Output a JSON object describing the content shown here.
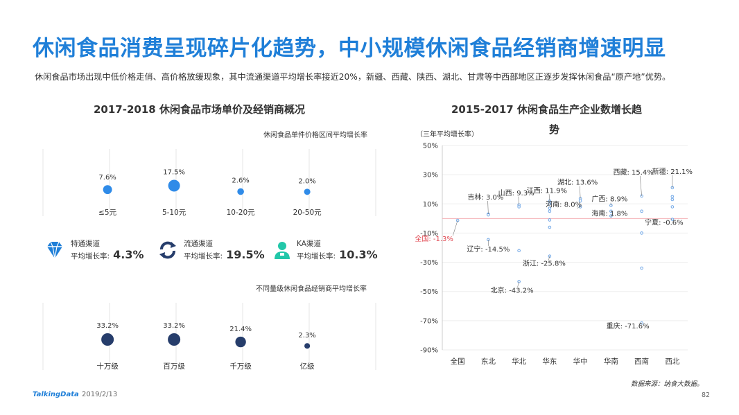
{
  "title": "休闲食品消费呈现碎片化趋势，中小规模休闲食品经销商增速明显",
  "subtitle": "休闲食品市场出现中低价格走俏、高价格放缓现象，其中流通渠道平均增长率接近20%，新疆、西藏、陕西、湖北、甘肃等中西部地区正逐步发挥休闲食品“原产地”优势。",
  "left_panel": {
    "title": "2017-2018  休闲食品市场单价及经销商概况",
    "channels": [
      {
        "name": "特通渠道",
        "rate_label": "平均增长率:",
        "rate": "4.3%",
        "icon": "diamond-icon"
      },
      {
        "name": "流通渠道",
        "rate_label": "平均增长率:",
        "rate": "19.5%",
        "icon": "circular-arrows-icon"
      },
      {
        "name": "KA渠道",
        "rate_label": "平均增长率:",
        "rate": "10.3%",
        "icon": "clerk-icon"
      }
    ]
  },
  "right_panel": {
    "title_line1": "2015-2017  休闲食品生产企业数增长趋",
    "title_line2": "势"
  },
  "colors": {
    "accent_blue": "#1f7fd8",
    "bubble_blue": "#2f8be8",
    "bubble_navy": "#263d6b",
    "negative_red": "#e0454f",
    "scatter_point": "#6fa6e6"
  },
  "chart_data": [
    {
      "type": "scatter",
      "title": "休闲食品单件价格区间平均增长率",
      "categories": [
        "≤5元",
        "5-10元",
        "10-20元",
        "20-50元"
      ],
      "values": [
        7.6,
        17.5,
        2.6,
        2.0
      ],
      "labels": [
        "7.6%",
        "17.5%",
        "2.6%",
        "2.0%"
      ],
      "grid": true
    },
    {
      "type": "scatter",
      "title": "不同量级休闲食品经销商平均增长率",
      "categories": [
        "十万级",
        "百万级",
        "千万级",
        "亿级"
      ],
      "values": [
        33.2,
        33.2,
        21.4,
        2.3
      ],
      "labels": [
        "33.2%",
        "33.2%",
        "21.4%",
        "2.3%"
      ],
      "grid": true
    },
    {
      "type": "scatter",
      "ylabel": "（三年平均增长率）",
      "categories": [
        "全国",
        "东北",
        "华北",
        "华东",
        "华中",
        "华南",
        "西南",
        "西北"
      ],
      "ylim": [
        -90,
        50
      ],
      "yticks": [
        "50%",
        "30%",
        "10%",
        "-10%",
        "-30%",
        "-50%",
        "-70%",
        "-90%"
      ],
      "ytick_values": [
        50,
        30,
        10,
        -10,
        -30,
        -50,
        -70,
        -90
      ],
      "reference_line": 0,
      "points": [
        {
          "cat": 0,
          "y": -1.3
        },
        {
          "cat": 1,
          "y": 3.0
        },
        {
          "cat": 1,
          "y": 2.5
        },
        {
          "cat": 1,
          "y": -14.5
        },
        {
          "cat": 2,
          "y": 9.3
        },
        {
          "cat": 2,
          "y": 8.0
        },
        {
          "cat": 2,
          "y": -22.0
        },
        {
          "cat": 2,
          "y": -43.2
        },
        {
          "cat": 3,
          "y": 11.9
        },
        {
          "cat": 3,
          "y": 10.0
        },
        {
          "cat": 3,
          "y": 7.0
        },
        {
          "cat": 3,
          "y": 5.0
        },
        {
          "cat": 3,
          "y": -1.0
        },
        {
          "cat": 3,
          "y": -6.0
        },
        {
          "cat": 3,
          "y": -25.8
        },
        {
          "cat": 4,
          "y": 13.6
        },
        {
          "cat": 4,
          "y": 12.0
        },
        {
          "cat": 4,
          "y": 8.0
        },
        {
          "cat": 5,
          "y": 8.9
        },
        {
          "cat": 5,
          "y": 5.0
        },
        {
          "cat": 5,
          "y": 1.8
        },
        {
          "cat": 6,
          "y": 15.4
        },
        {
          "cat": 6,
          "y": 5.0
        },
        {
          "cat": 6,
          "y": -10.0
        },
        {
          "cat": 6,
          "y": -34.0
        },
        {
          "cat": 6,
          "y": -71.6
        },
        {
          "cat": 7,
          "y": 21.1
        },
        {
          "cat": 7,
          "y": 15.0
        },
        {
          "cat": 7,
          "y": 13.0
        },
        {
          "cat": 7,
          "y": 8.0
        },
        {
          "cat": 7,
          "y": -0.6
        }
      ],
      "annotations": [
        {
          "text": "全国: -1.3%",
          "cat": 0,
          "y": -1.3,
          "highlight": true
        },
        {
          "text": "吉林: 3.0%",
          "cat": 1,
          "y": 3.0
        },
        {
          "text": "辽宁: -14.5%",
          "cat": 1,
          "y": -14.5
        },
        {
          "text": "山西: 9.3%",
          "cat": 2,
          "y": 9.3
        },
        {
          "text": "北京: -43.2%",
          "cat": 2,
          "y": -43.2
        },
        {
          "text": "江西: 11.9%",
          "cat": 3,
          "y": 11.9
        },
        {
          "text": "浙江: -25.8%",
          "cat": 3,
          "y": -25.8
        },
        {
          "text": "湖北: 13.6%",
          "cat": 4,
          "y": 13.6
        },
        {
          "text": "河南: 8.0%",
          "cat": 4,
          "y": 8.0
        },
        {
          "text": "广西: 8.9%",
          "cat": 5,
          "y": 8.9
        },
        {
          "text": "海南: 1.8%",
          "cat": 5,
          "y": 1.8
        },
        {
          "text": "西藏: 15.4%",
          "cat": 6,
          "y": 15.4
        },
        {
          "text": "重庆: -71.6%",
          "cat": 6,
          "y": -71.6
        },
        {
          "text": "新疆: 21.1%",
          "cat": 7,
          "y": 21.1
        },
        {
          "text": "宁夏: -0.6%",
          "cat": 7,
          "y": -0.6
        }
      ],
      "grid": true
    }
  ],
  "footer": {
    "brand": "TalkingData",
    "date": "2019/2/13",
    "source": "数据来源：纳食大数据。",
    "page": "82"
  }
}
